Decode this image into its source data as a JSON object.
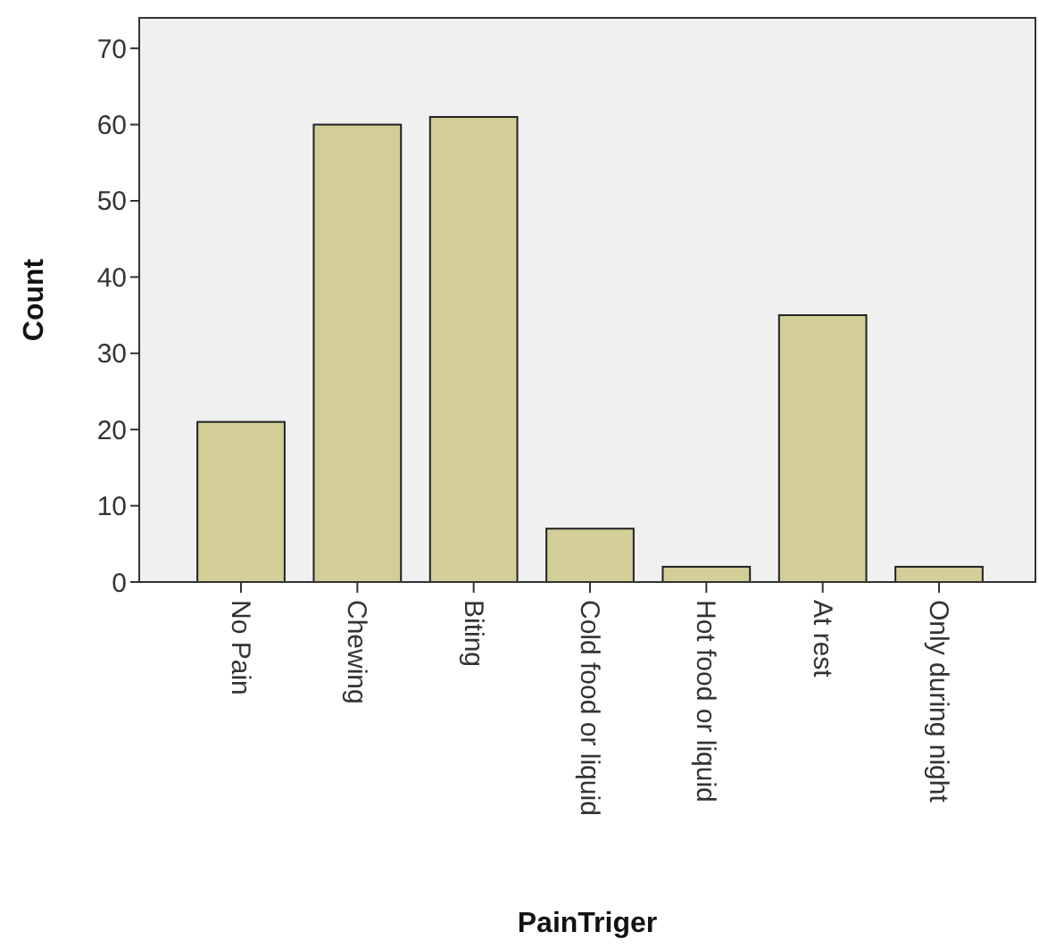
{
  "chart_data": {
    "type": "bar",
    "xlabel": "PainTriger",
    "ylabel": "Count",
    "categories": [
      "No Pain",
      "Chewing",
      "Biting",
      "Cold food or liquid",
      "Hot food or liquid",
      "At rest",
      "Only during night"
    ],
    "values": [
      21,
      60,
      61,
      7,
      2,
      35,
      2
    ],
    "color": "#d3ce97",
    "ylim": [
      0,
      74
    ],
    "yticks": [
      0,
      10,
      20,
      30,
      40,
      50,
      60,
      70
    ],
    "grid": false
  }
}
